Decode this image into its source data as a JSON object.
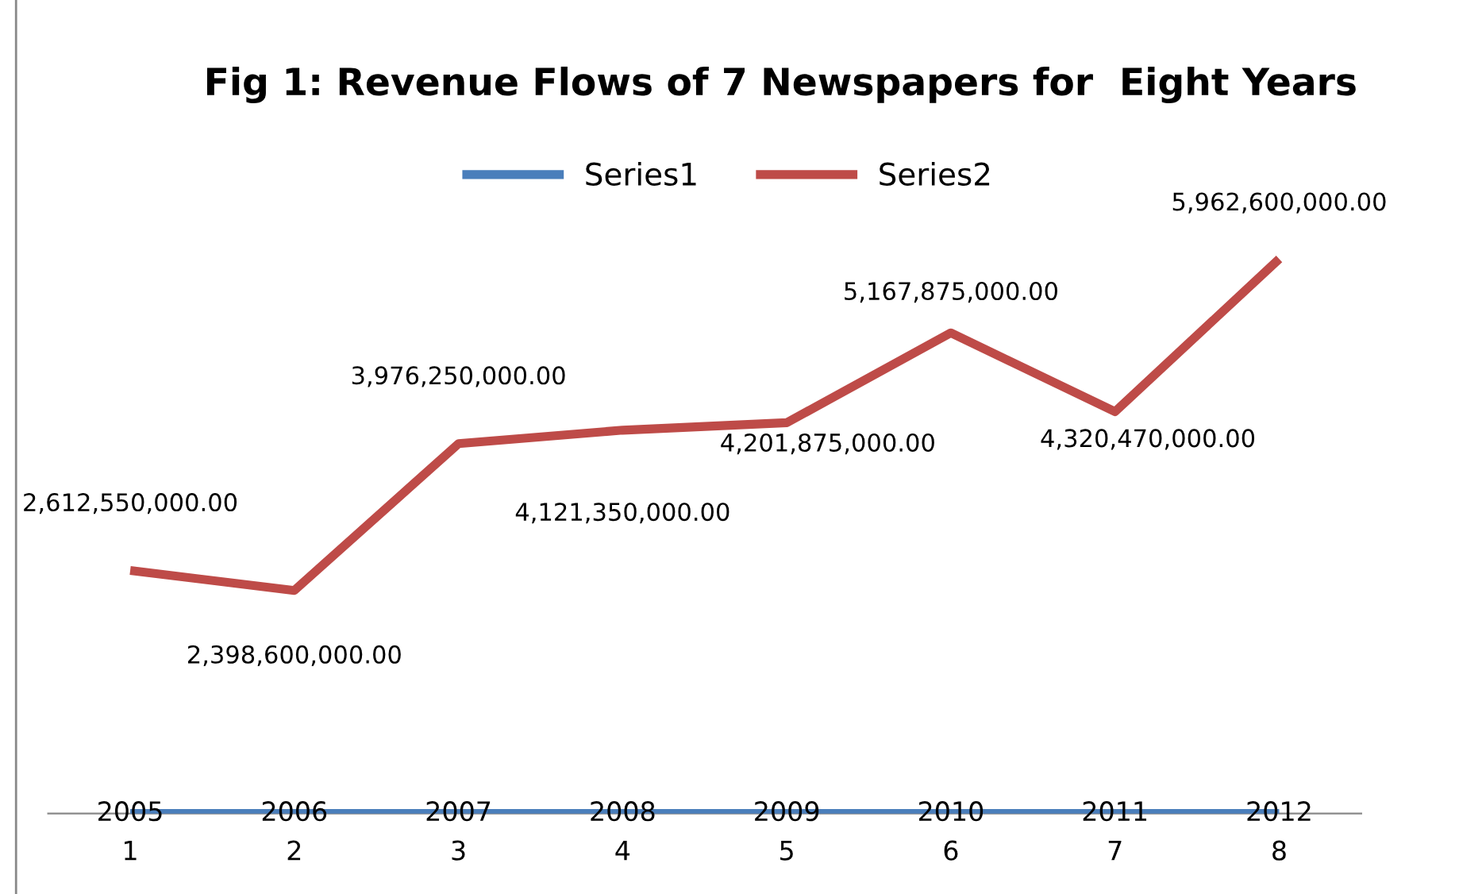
{
  "chart_data": {
    "type": "line",
    "title": "Fig 1: Revenue Flows of 7 Newspapers for  Eight Years",
    "categories": [
      "1",
      "2",
      "3",
      "4",
      "5",
      "6",
      "7",
      "8"
    ],
    "series": [
      {
        "name": "Series1",
        "color": "#4a7ebb",
        "values": [
          2005,
          2006,
          2007,
          2008,
          2009,
          2010,
          2011,
          2012
        ],
        "value_labels": [
          "2005",
          "2006",
          "2007",
          "2008",
          "2009",
          "2010",
          "2011",
          "2012"
        ]
      },
      {
        "name": "Series2",
        "color": "#be4b48",
        "values": [
          2612550000,
          2398600000,
          3976250000,
          4121350000,
          4201875000,
          5167875000,
          4320470000,
          5962600000
        ],
        "value_labels": [
          "2,612,550,000.00",
          "2,398,600,000.00",
          "3,976,250,000.00",
          "4,121,350,000.00",
          "4,201,875,000.00",
          "5,167,875,000.00",
          "4,320,470,000.00",
          "5,962,600,000.00"
        ]
      }
    ],
    "legend": "top",
    "grid": false,
    "marker": "none",
    "line_style": "solid"
  }
}
